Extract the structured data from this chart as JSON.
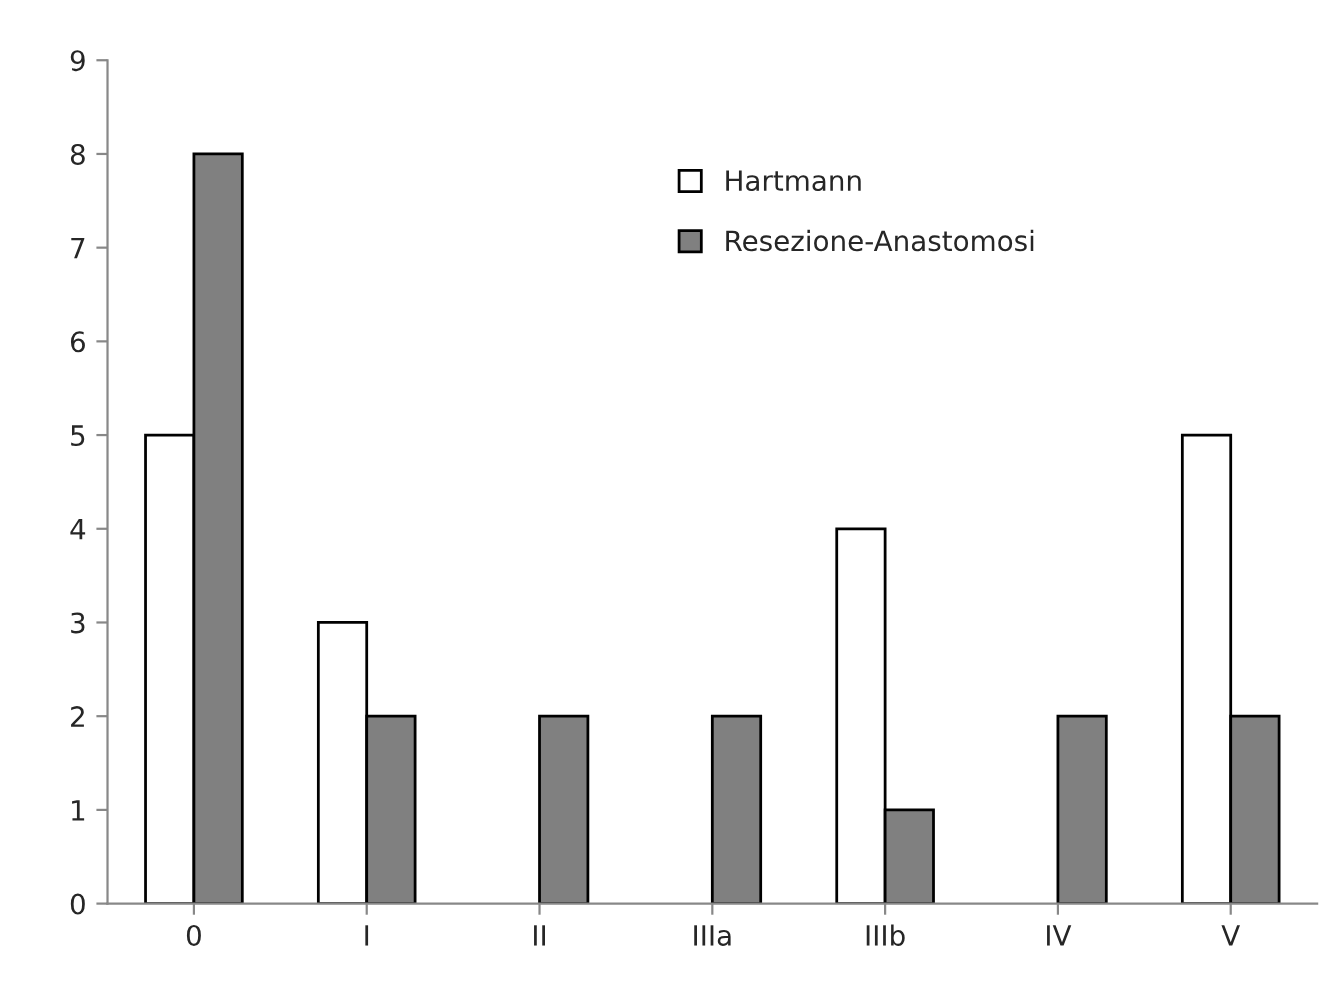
{
  "chart_data": {
    "type": "bar",
    "categories": [
      "0",
      "I",
      "II",
      "IIIa",
      "IIIb",
      "IV",
      "V"
    ],
    "series": [
      {
        "name": "Hartmann",
        "color": "#ffffff",
        "values": [
          5,
          3,
          null,
          null,
          4,
          null,
          5
        ]
      },
      {
        "name": "Resezione-Anastomosi",
        "color": "#808080",
        "values": [
          8,
          2,
          2,
          2,
          1,
          2,
          2
        ]
      }
    ],
    "ylim": [
      0,
      9
    ],
    "yticks": [
      0,
      1,
      2,
      3,
      4,
      5,
      6,
      7,
      8,
      9
    ],
    "grid": false,
    "legend": "top"
  }
}
